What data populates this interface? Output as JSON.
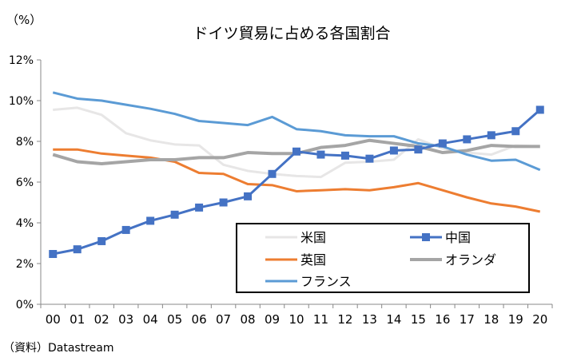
{
  "chart_data": {
    "type": "line",
    "title": "ドイツ貿易に占める各国割合",
    "ylabel": "（%）",
    "source": "（資料）Datastream",
    "categories": [
      "00",
      "01",
      "02",
      "03",
      "04",
      "05",
      "06",
      "07",
      "08",
      "09",
      "10",
      "11",
      "12",
      "13",
      "14",
      "15",
      "16",
      "17",
      "18",
      "19",
      "20"
    ],
    "ylim": [
      0,
      12
    ],
    "yticks": [
      "0%",
      "2%",
      "4%",
      "6%",
      "8%",
      "10%",
      "12%"
    ],
    "ytick_values": [
      0,
      2,
      4,
      6,
      8,
      10,
      12
    ],
    "grid": false,
    "legend": "bottom-right",
    "series": [
      {
        "name": "米国",
        "color": "#e7e6e6",
        "marker": "none",
        "values": [
          9.55,
          9.65,
          9.3,
          8.4,
          8.05,
          7.85,
          7.8,
          6.85,
          6.55,
          6.4,
          6.3,
          6.25,
          6.95,
          7.0,
          7.1,
          8.1,
          7.65,
          7.45,
          7.35,
          7.8,
          7.75
        ]
      },
      {
        "name": "中国",
        "color": "#4472c4",
        "marker": "square",
        "values": [
          2.47,
          2.7,
          3.1,
          3.65,
          4.1,
          4.4,
          4.75,
          5.0,
          5.3,
          6.4,
          7.5,
          7.35,
          7.3,
          7.15,
          7.55,
          7.6,
          7.9,
          8.1,
          8.3,
          8.5,
          9.55
        ]
      },
      {
        "name": "英国",
        "color": "#ed7d31",
        "marker": "none",
        "values": [
          7.6,
          7.6,
          7.4,
          7.3,
          7.2,
          7.0,
          6.45,
          6.4,
          5.9,
          5.85,
          5.55,
          5.6,
          5.65,
          5.6,
          5.75,
          5.95,
          5.6,
          5.25,
          4.95,
          4.8,
          4.55
        ]
      },
      {
        "name": "オランダ",
        "color": "#a5a5a5",
        "marker": "none",
        "values": [
          7.35,
          7.0,
          6.9,
          7.0,
          7.1,
          7.1,
          7.2,
          7.2,
          7.45,
          7.4,
          7.4,
          7.7,
          7.8,
          8.05,
          7.9,
          7.75,
          7.45,
          7.55,
          7.8,
          7.75,
          7.75
        ]
      },
      {
        "name": "フランス",
        "color": "#5b9bd5",
        "marker": "none",
        "values": [
          10.4,
          10.1,
          10.0,
          9.8,
          9.6,
          9.35,
          9.0,
          8.9,
          8.8,
          9.2,
          8.6,
          8.5,
          8.3,
          8.25,
          8.25,
          7.9,
          7.75,
          7.35,
          7.05,
          7.1,
          6.6
        ]
      }
    ]
  }
}
